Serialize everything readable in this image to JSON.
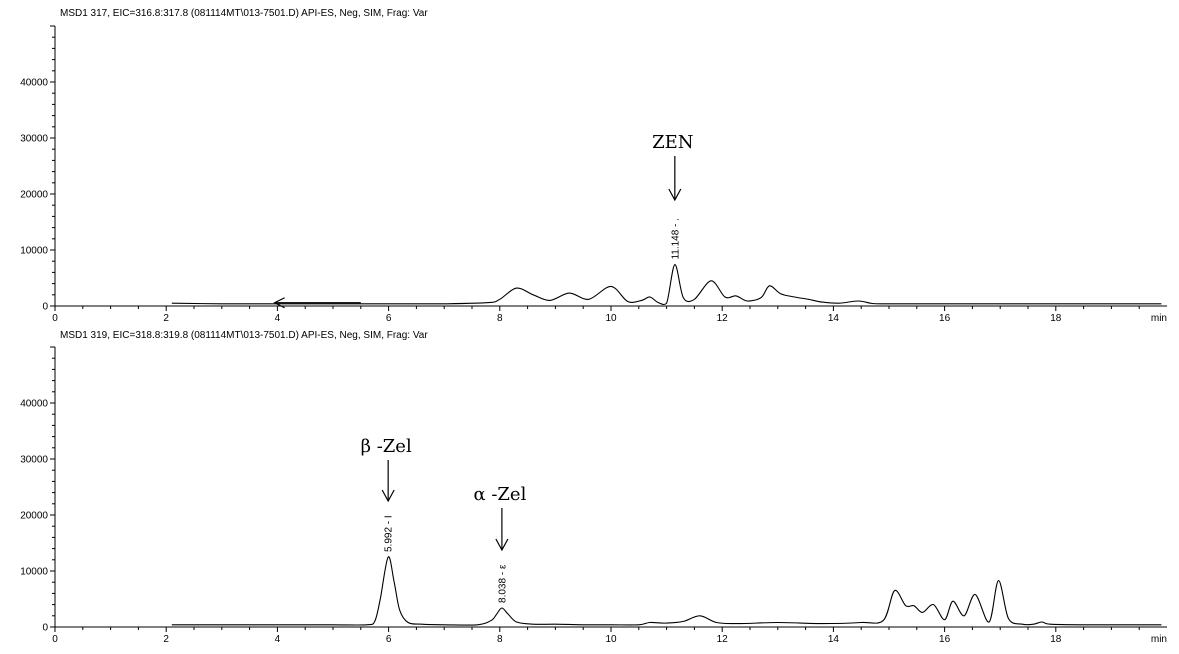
{
  "chart_data": [
    {
      "type": "line",
      "title": "MSD1 317, EIC=316.8:317.8 (081114MT\\013-7501.D)    API-ES, Neg, SIM, Frag: Var",
      "xlabel": "min",
      "ylabel": "",
      "xlim": [
        0,
        20
      ],
      "ylim": [
        0,
        50000
      ],
      "x_ticks": [
        0,
        2,
        4,
        6,
        8,
        10,
        12,
        14,
        16,
        18
      ],
      "x_tick_labels": [
        "0",
        "2",
        "4",
        "6",
        "8",
        "10",
        "12",
        "14",
        "16",
        "18"
      ],
      "y_ticks": [
        0,
        10000,
        20000,
        30000,
        40000
      ],
      "y_tick_labels": [
        "0",
        "10000",
        "20000",
        "30000",
        "40000"
      ],
      "series": [
        {
          "x": [
            2.1,
            3,
            4,
            5,
            6,
            7,
            7.8,
            8.0,
            8.3,
            8.6,
            8.9,
            9.25,
            9.6,
            10.0,
            10.3,
            10.55,
            10.7,
            10.85,
            11.0,
            11.148,
            11.3,
            11.5,
            11.8,
            12.05,
            12.25,
            12.45,
            12.7,
            12.85,
            13.05,
            13.3,
            13.55,
            13.8,
            14.1,
            14.45,
            14.7,
            15,
            16,
            17,
            18,
            19,
            19.9
          ],
          "y": [
            500,
            400,
            400,
            400,
            400,
            400,
            600,
            1200,
            3200,
            2000,
            1000,
            2300,
            1200,
            3500,
            800,
            1000,
            1600,
            600,
            500,
            7400,
            1500,
            1200,
            4500,
            1600,
            1800,
            900,
            1500,
            3600,
            2200,
            1600,
            1200,
            700,
            500,
            900,
            450,
            400,
            400,
            400,
            400,
            400,
            400
          ]
        }
      ],
      "peak_labels": [
        {
          "x": 11.148,
          "label": "11.148 - ."
        }
      ],
      "annotations": [
        {
          "label": "ZEN",
          "x": 11.148
        }
      ],
      "arrow_annotation": {
        "from_x": 5.5,
        "to_x": 3.95,
        "y": 400
      }
    },
    {
      "type": "line",
      "title": "MSD1 319, EIC=318.8:319.8 (081114MT\\013-7501.D)    API-ES, Neg, SIM, Frag: Var",
      "xlabel": "min",
      "ylabel": "",
      "xlim": [
        0,
        20
      ],
      "ylim": [
        0,
        50000
      ],
      "x_ticks": [
        0,
        2,
        4,
        6,
        8,
        10,
        12,
        14,
        16,
        18
      ],
      "x_tick_labels": [
        "0",
        "2",
        "4",
        "6",
        "8",
        "10",
        "12",
        "14",
        "16",
        "18"
      ],
      "y_ticks": [
        0,
        10000,
        20000,
        30000,
        40000
      ],
      "y_tick_labels": [
        "0",
        "10000",
        "20000",
        "30000",
        "40000"
      ],
      "series": [
        {
          "x": [
            2.1,
            3,
            4,
            5,
            5.6,
            5.75,
            5.85,
            5.992,
            6.1,
            6.2,
            6.35,
            6.6,
            7.0,
            7.6,
            7.85,
            7.95,
            8.038,
            8.15,
            8.3,
            8.6,
            9,
            9.5,
            10,
            10.5,
            10.7,
            11,
            11.3,
            11.6,
            11.9,
            12.3,
            13,
            13.8,
            14.5,
            14.9,
            15.1,
            15.3,
            15.45,
            15.6,
            15.8,
            16.0,
            16.15,
            16.35,
            16.55,
            16.8,
            16.97,
            17.15,
            17.4,
            17.6,
            17.75,
            17.9,
            18.5,
            19.9
          ],
          "y": [
            400,
            400,
            400,
            400,
            400,
            1000,
            5000,
            12500,
            8000,
            3000,
            800,
            500,
            400,
            400,
            1200,
            2400,
            3400,
            2300,
            900,
            500,
            500,
            400,
            400,
            400,
            800,
            700,
            1000,
            2000,
            800,
            600,
            800,
            600,
            800,
            1200,
            6500,
            3800,
            3800,
            2600,
            4000,
            1300,
            4600,
            2000,
            5800,
            900,
            8300,
            1500,
            500,
            500,
            900,
            500,
            400,
            400
          ]
        }
      ],
      "peak_labels": [
        {
          "x": 5.992,
          "label": "5.992 - I"
        },
        {
          "x": 8.038,
          "label": "8.038 - ε"
        }
      ],
      "annotations": [
        {
          "label": "β -Zel",
          "x": 5.992
        },
        {
          "label": "α -Zel",
          "x": 8.038
        }
      ]
    }
  ]
}
